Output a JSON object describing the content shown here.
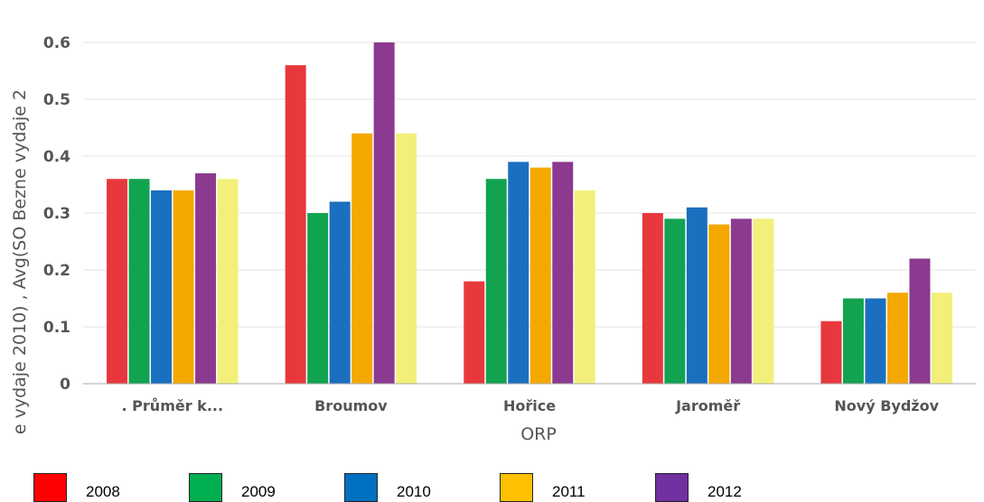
{
  "chart_data": {
    "type": "bar",
    "xlabel": "ORP",
    "ylabel": "e vydaje 2010) , Avg(SO Bezne vydaje 2",
    "ylim": [
      0,
      0.6
    ],
    "yticks": [
      "0",
      "0.1",
      "0.2",
      "0.3",
      "0.4",
      "0.5",
      "0.6"
    ],
    "categories": [
      ". Průměr k...",
      "Broumov",
      "Hořice",
      "Jaroměř",
      "Nový Bydžov"
    ],
    "series": [
      {
        "name": "2008",
        "color": "#e8383d",
        "values": [
          0.36,
          0.56,
          0.18,
          0.3,
          0.11
        ]
      },
      {
        "name": "2009",
        "color": "#12a350",
        "values": [
          0.36,
          0.3,
          0.36,
          0.29,
          0.15
        ]
      },
      {
        "name": "2010",
        "color": "#1a6fbf",
        "values": [
          0.34,
          0.32,
          0.39,
          0.31,
          0.15
        ]
      },
      {
        "name": "2011",
        "color": "#f5a800",
        "values": [
          0.34,
          0.44,
          0.38,
          0.28,
          0.16
        ]
      },
      {
        "name": "2012",
        "color": "#8b3a8f",
        "values": [
          0.37,
          0.6,
          0.39,
          0.29,
          0.22
        ]
      },
      {
        "color": "#f2f07a",
        "values": [
          0.36,
          0.44,
          0.34,
          0.29,
          0.16
        ]
      }
    ],
    "grid": true
  },
  "legend": [
    {
      "label": "2008",
      "color": "#ff0000"
    },
    {
      "label": "2009",
      "color": "#00b050"
    },
    {
      "label": "2010",
      "color": "#0070c0"
    },
    {
      "label": "2011",
      "color": "#ffc000"
    },
    {
      "label": "2012",
      "color": "#7030a0"
    }
  ]
}
